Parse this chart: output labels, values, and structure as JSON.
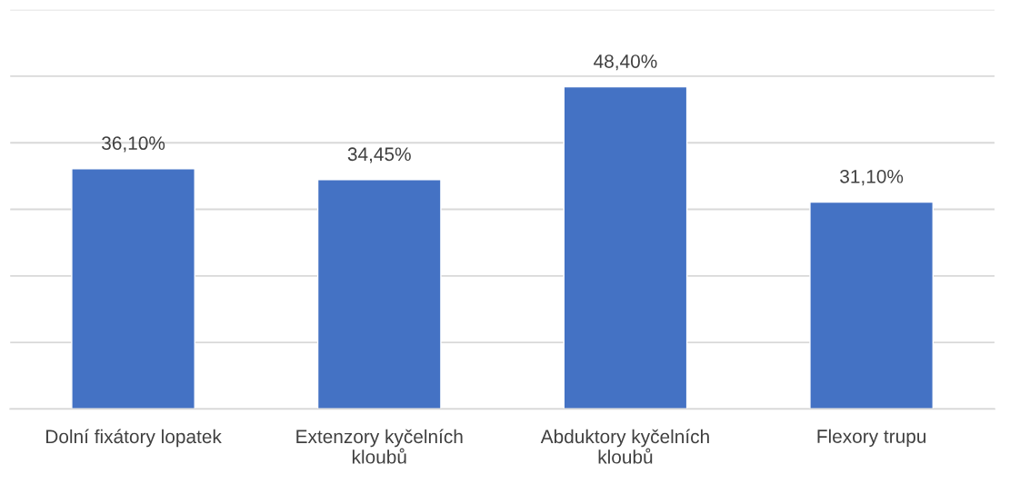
{
  "chart_data": {
    "type": "bar",
    "categories": [
      "Dolní fixátory lopatek",
      "Extenzory kyčelních\nkloubů",
      "Abduktory kyčelních\nkloubů",
      "Flexory trupu"
    ],
    "values": [
      36.1,
      34.45,
      48.4,
      31.1
    ],
    "value_labels": [
      "36,10%",
      "34,45%",
      "48,40%",
      "31,10%"
    ],
    "color": "#4472c4",
    "ylim": [
      0,
      60
    ],
    "yticks": [
      {
        "value": 0,
        "label": null
      },
      {
        "value": 10,
        "label": null
      },
      {
        "value": 20,
        "label": null
      },
      {
        "value": 30,
        "label": null
      },
      {
        "value": 40,
        "label": null
      },
      {
        "value": 50,
        "label": null
      },
      {
        "value": 60,
        "label": null
      }
    ],
    "grid": "y",
    "tick_labels": "x"
  }
}
